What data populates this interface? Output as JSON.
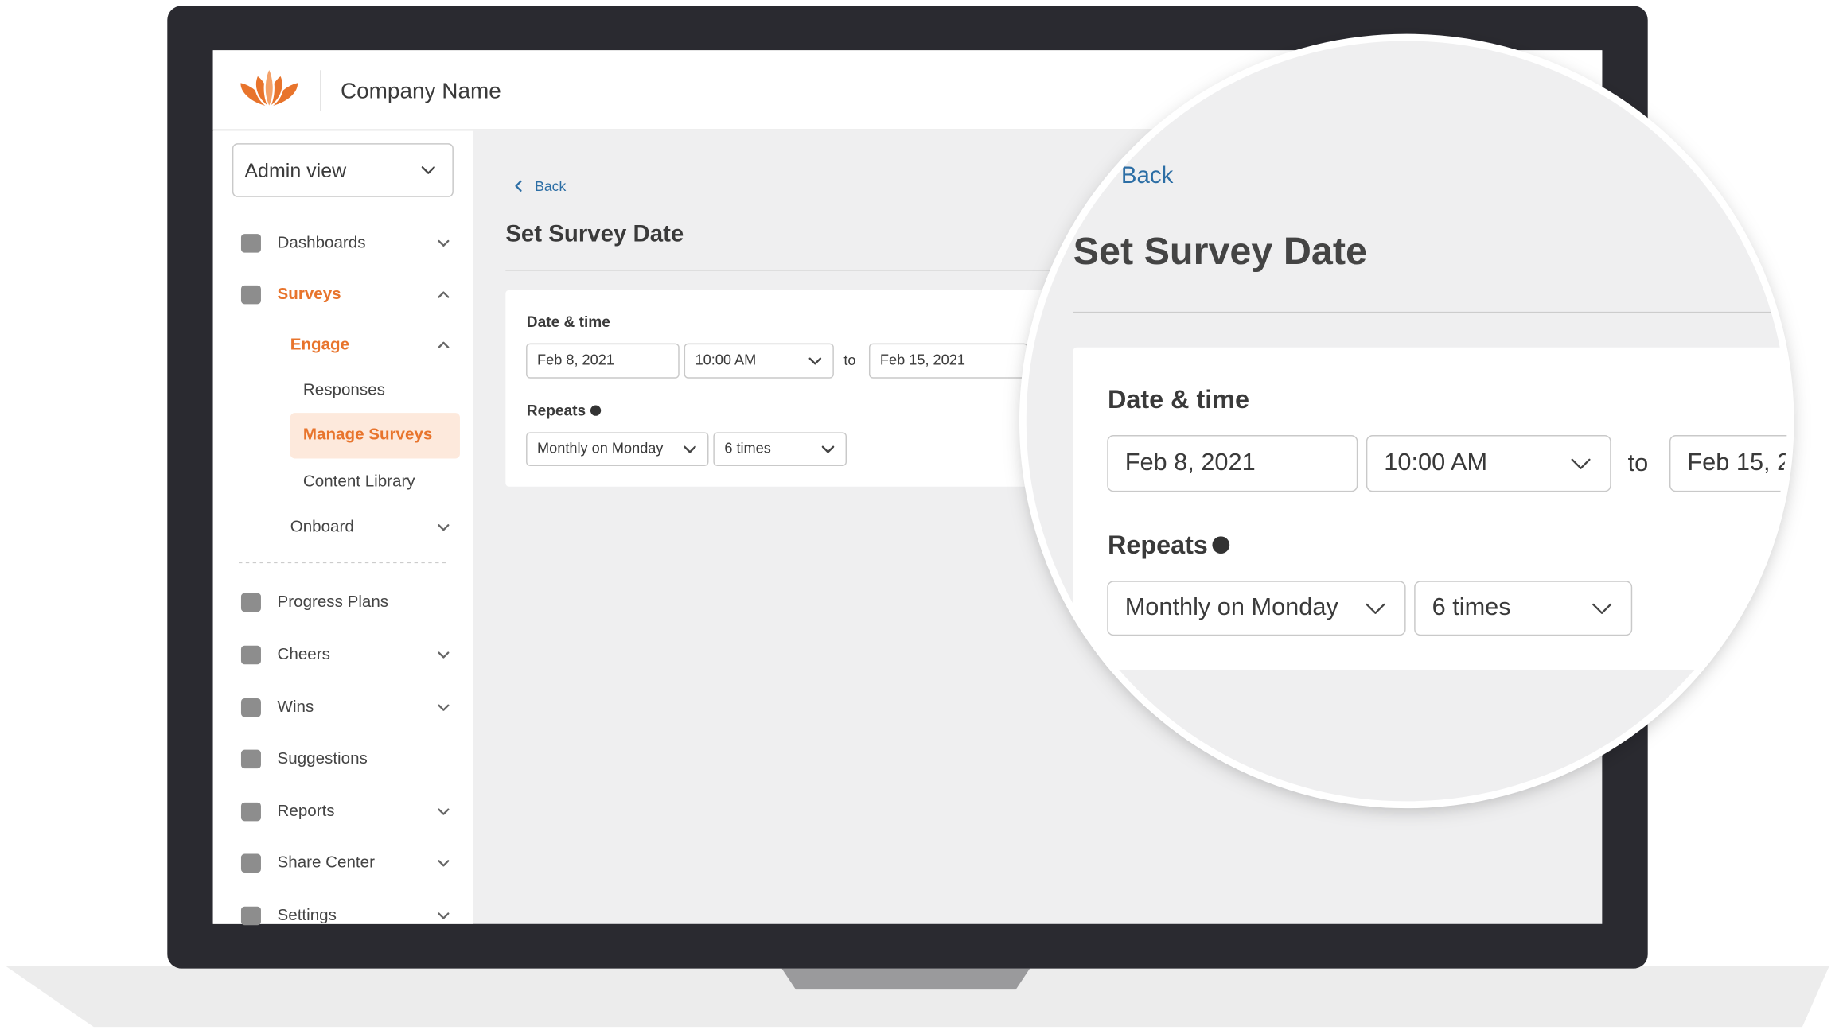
{
  "header": {
    "company": "Company Name"
  },
  "sidebar": {
    "view": "Admin view",
    "nav": [
      "Dashboards",
      "Surveys",
      "Engage",
      "Responses",
      "Manage Surveys",
      "Content Library",
      "Onboard",
      "Progress Plans",
      "Cheers",
      "Wins",
      "Suggestions",
      "Reports",
      "Share Center",
      "Settings"
    ]
  },
  "main": {
    "back": "Back",
    "title": "Set Survey Date",
    "date_label": "Date & time",
    "start_date": "Feb 8, 2021",
    "start_time": "10:00 AM",
    "to": "to",
    "end_date": "Feb 15, 2021",
    "repeats_label": "Repeats",
    "repeat_rule": "Monthly on Monday",
    "repeat_count": "6 times"
  }
}
